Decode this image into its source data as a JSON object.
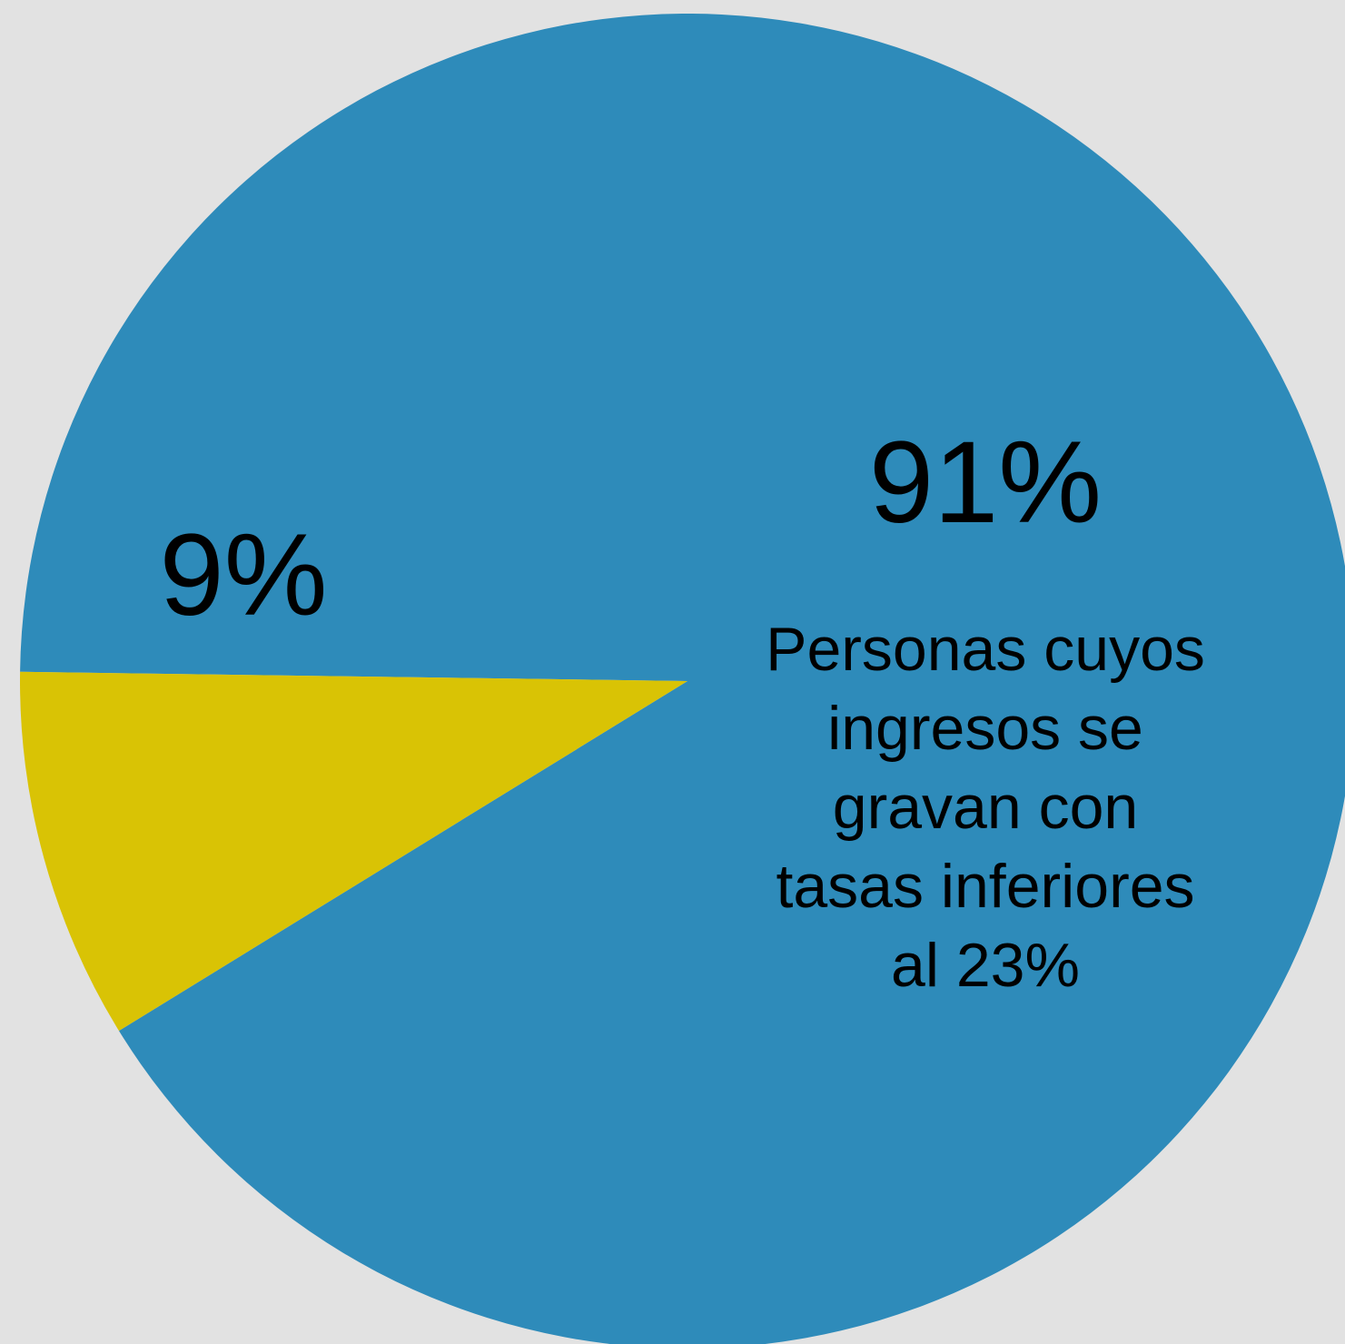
{
  "chart_data": {
    "type": "pie",
    "slices": [
      {
        "label": "91%",
        "value": 91,
        "color": "#2e8bba",
        "description_lines": [
          "Personas cuyos",
          "ingresos se",
          "gravan con",
          "tasas inferiores",
          "al 23%"
        ]
      },
      {
        "label": "9%",
        "value": 9,
        "color": "#d9c305",
        "description_lines": []
      }
    ],
    "start_angle_deg": 180.8,
    "direction": "clockwise",
    "legend": "none"
  }
}
